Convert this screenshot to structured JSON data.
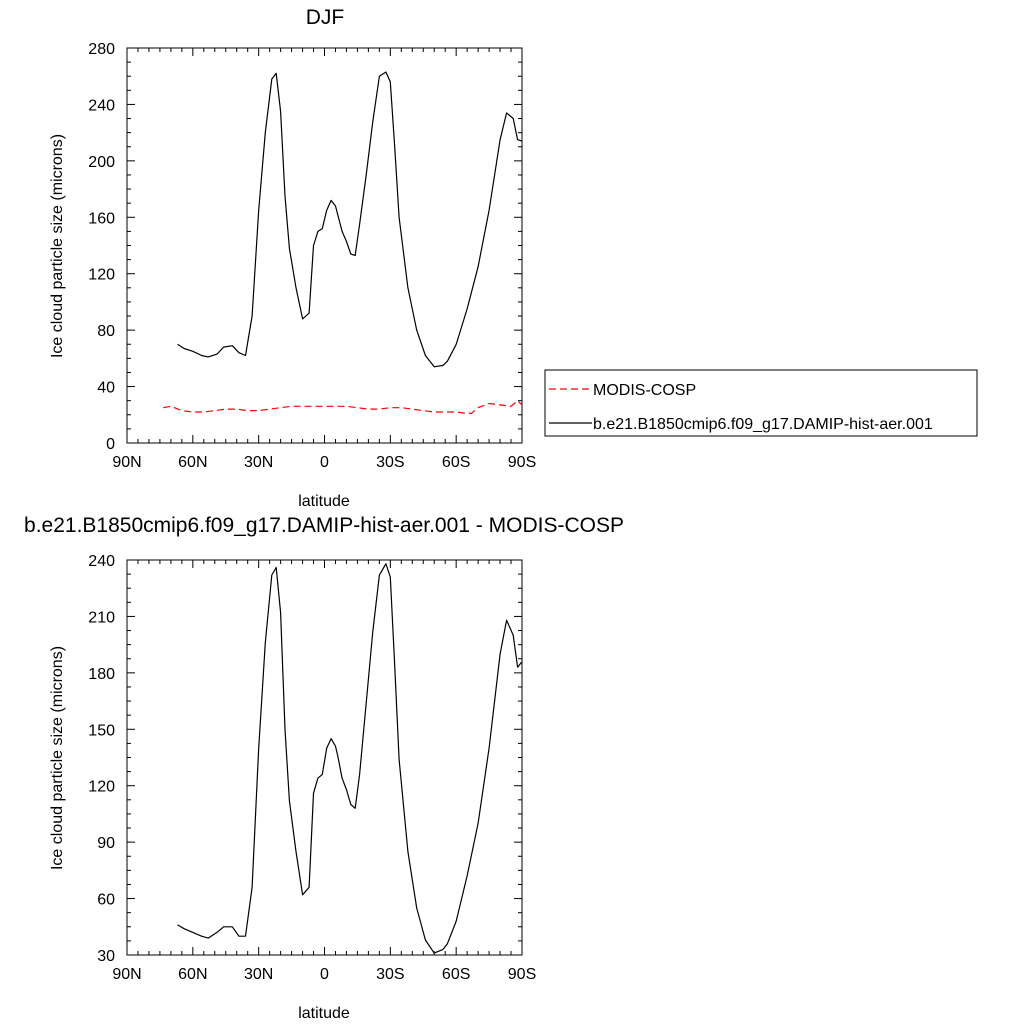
{
  "chart_data": [
    {
      "type": "line",
      "title": "DJF",
      "xlabel": "latitude",
      "ylabel": "Ice cloud particle size (microns)",
      "xlim": [
        90,
        -90
      ],
      "ylim": [
        0,
        280
      ],
      "xticks": [
        90,
        60,
        30,
        0,
        -30,
        -60,
        -90
      ],
      "xtick_labels": [
        "90N",
        "60N",
        "30N",
        "0",
        "30S",
        "60S",
        "90S"
      ],
      "yticks": [
        0,
        40,
        80,
        120,
        160,
        200,
        240,
        280
      ],
      "ytick_labels": [
        "0",
        "40",
        "80",
        "120",
        "160",
        "200",
        "240",
        "280"
      ],
      "grid": false,
      "legend": "right",
      "series": [
        {
          "name": "MODIS-COSP",
          "color": "#ff0000",
          "dash": "dashed",
          "x": [
            73.5,
            70,
            65,
            60,
            55,
            50,
            45,
            40,
            35,
            30,
            25,
            20,
            15,
            10,
            5,
            0,
            -5,
            -10,
            -15,
            -20,
            -25,
            -30,
            -35,
            -40,
            -45,
            -50,
            -55,
            -60,
            -65,
            -67,
            -70,
            -75,
            -80,
            -85,
            -88,
            -90
          ],
          "y": [
            25,
            26,
            23,
            22,
            22,
            23,
            24,
            24,
            23,
            23,
            24,
            25,
            26,
            26,
            26,
            26,
            26,
            26,
            25,
            24,
            24,
            25,
            25,
            24,
            23,
            22,
            22,
            22,
            21,
            21,
            25,
            28,
            27,
            26,
            30,
            27
          ]
        },
        {
          "name": "b.e21.B1850cmip6.f09_g17.DAMIP-hist-aer.001",
          "color": "#000000",
          "dash": "solid",
          "x": [
            67,
            64,
            60,
            56,
            53,
            49,
            46,
            42,
            39,
            36,
            33,
            30,
            27,
            24,
            22,
            20,
            18,
            16,
            13,
            10,
            7,
            5,
            3,
            1,
            -1,
            -3,
            -5,
            -6,
            -8,
            -10,
            -12,
            -14,
            -16,
            -19,
            -22,
            -25,
            -28,
            -30,
            -32,
            -34,
            -38,
            -42,
            -46,
            -50,
            -54,
            -56,
            -60,
            -65,
            -70,
            -75,
            -80,
            -83,
            -86,
            -88,
            -90
          ],
          "y": [
            70,
            67,
            65,
            62,
            61,
            63,
            68,
            69,
            64,
            62,
            90,
            165,
            220,
            258,
            262,
            235,
            175,
            138,
            110,
            88,
            92,
            140,
            150,
            152,
            165,
            172,
            168,
            162,
            150,
            143,
            134,
            133,
            155,
            190,
            228,
            260,
            263,
            256,
            210,
            160,
            110,
            80,
            62,
            54,
            55,
            58,
            70,
            95,
            125,
            165,
            215,
            234,
            230,
            215,
            214
          ]
        }
      ]
    },
    {
      "type": "line",
      "title": "b.e21.B1850cmip6.f09_g17.DAMIP-hist-aer.001 - MODIS-COSP",
      "xlabel": "latitude",
      "ylabel": "Ice cloud particle size (microns)",
      "xlim": [
        90,
        -90
      ],
      "ylim": [
        30,
        240
      ],
      "xticks": [
        90,
        60,
        30,
        0,
        -30,
        -60,
        -90
      ],
      "xtick_labels": [
        "90N",
        "60N",
        "30N",
        "0",
        "30S",
        "60S",
        "90S"
      ],
      "yticks": [
        30,
        60,
        90,
        120,
        150,
        180,
        210,
        240
      ],
      "ytick_labels": [
        "30",
        "60",
        "90",
        "120",
        "150",
        "180",
        "210",
        "240"
      ],
      "grid": false,
      "series": [
        {
          "color": "#000000",
          "dash": "solid",
          "x": [
            67,
            64,
            60,
            56,
            53,
            49,
            46,
            42,
            39,
            36,
            33,
            30,
            27,
            24,
            22,
            20,
            18,
            16,
            13,
            10,
            7,
            5,
            3,
            1,
            -1,
            -3,
            -5,
            -6,
            -8,
            -10,
            -12,
            -14,
            -16,
            -19,
            -22,
            -25,
            -28,
            -30,
            -32,
            -34,
            -38,
            -42,
            -46,
            -50,
            -54,
            -56,
            -60,
            -65,
            -70,
            -75,
            -80,
            -83,
            -86,
            -88,
            -90
          ],
          "y": [
            46,
            44,
            42,
            40,
            39,
            42,
            45,
            45,
            40,
            40,
            66,
            140,
            196,
            232,
            236,
            212,
            150,
            112,
            85,
            62,
            66,
            116,
            124,
            126,
            140,
            145,
            141,
            136,
            124,
            118,
            110,
            108,
            126,
            164,
            202,
            232,
            238,
            231,
            184,
            134,
            85,
            55,
            38,
            31,
            33,
            36,
            48,
            72,
            100,
            140,
            190,
            208,
            200,
            183,
            186
          ]
        }
      ]
    }
  ]
}
